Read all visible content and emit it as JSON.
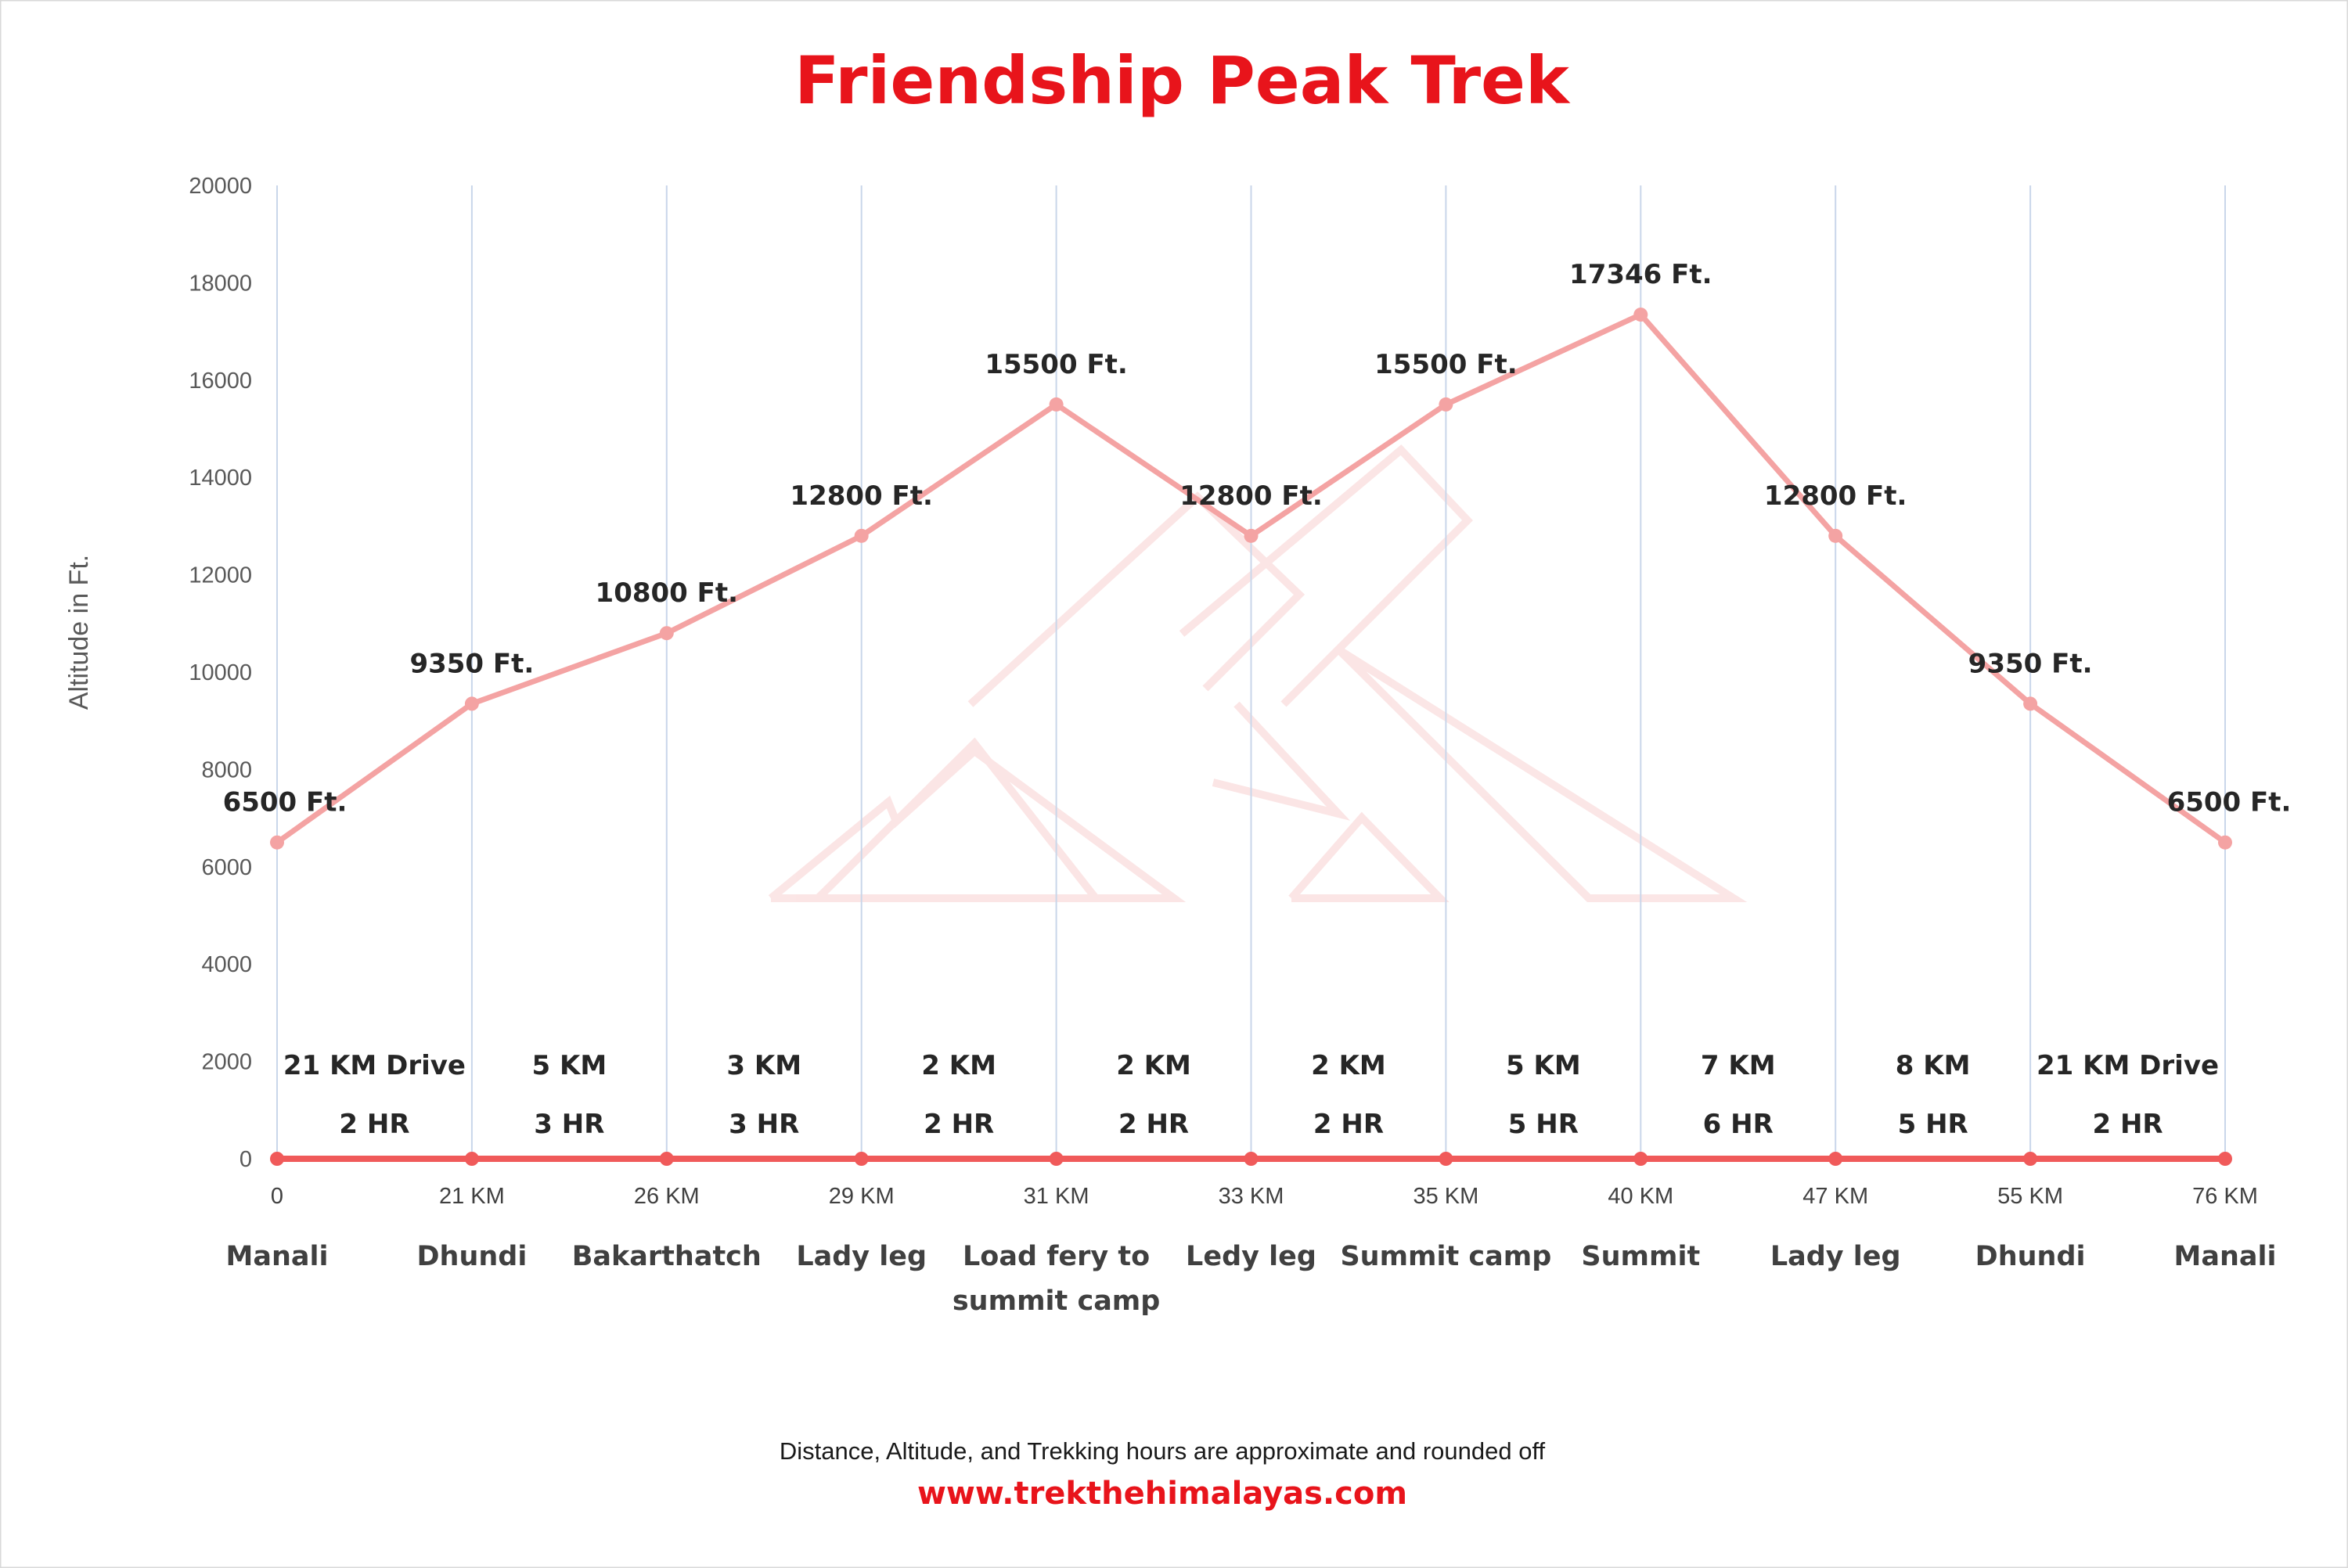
{
  "chart_data": {
    "type": "line",
    "title": "Friendship Peak Trek",
    "ylabel": "Altitude in Ft.",
    "ylim": [
      0,
      20000
    ],
    "yticks": [
      0,
      2000,
      4000,
      6000,
      8000,
      10000,
      12000,
      14000,
      16000,
      18000,
      20000
    ],
    "grid": "vertical",
    "x_distance_labels": [
      "0",
      "21 KM",
      "26 KM",
      "29 KM",
      "31 KM",
      "33 KM",
      "35 KM",
      "40 KM",
      "47 KM",
      "55 KM",
      "76 KM"
    ],
    "places": [
      "Manali",
      "Dhundi",
      "Bakarthatch",
      "Lady leg",
      "Load fery to summit camp",
      "Ledy leg",
      "Summit camp",
      "Summit",
      "Lady leg",
      "Dhundi",
      "Manali"
    ],
    "series": [
      {
        "values": [
          6500,
          9350,
          10800,
          12800,
          15500,
          12800,
          15500,
          17346,
          12800,
          9350,
          6500
        ],
        "color": "#f4a3a3"
      },
      {
        "values": [
          0,
          0,
          0,
          0,
          0,
          0,
          0,
          0,
          0,
          0,
          0
        ],
        "color": "#f05a5a"
      }
    ],
    "data_labels": [
      "6500 Ft.",
      "9350 Ft.",
      "10800 Ft.",
      "12800 Ft.",
      "15500 Ft.",
      "12800 Ft.",
      "15500 Ft.",
      "17346 Ft.",
      "12800 Ft.",
      "9350 Ft.",
      "6500 Ft."
    ],
    "segments": [
      {
        "distance": "21  KM Drive",
        "time": "2 HR"
      },
      {
        "distance": "5 KM",
        "time": "3 HR"
      },
      {
        "distance": "3 KM",
        "time": "3 HR"
      },
      {
        "distance": "2 KM",
        "time": "2 HR"
      },
      {
        "distance": "2 KM",
        "time": "2 HR"
      },
      {
        "distance": "2 KM",
        "time": "2 HR"
      },
      {
        "distance": "5 KM",
        "time": "5 HR"
      },
      {
        "distance": "7 KM",
        "time": "6 HR"
      },
      {
        "distance": "8 KM",
        "time": "5 HR"
      },
      {
        "distance": "21  KM Drive",
        "time": "2 HR"
      }
    ]
  },
  "footer": {
    "note": "Distance, Altitude,  and Trekking hours are approximate and rounded  off",
    "website": "www.trekthehimalayas.com"
  },
  "colors": {
    "title": "#e8141b",
    "website": "#e8141b",
    "line": "#f4a3a3",
    "base": "#f05a5a",
    "grid": "#c9d6ea"
  }
}
